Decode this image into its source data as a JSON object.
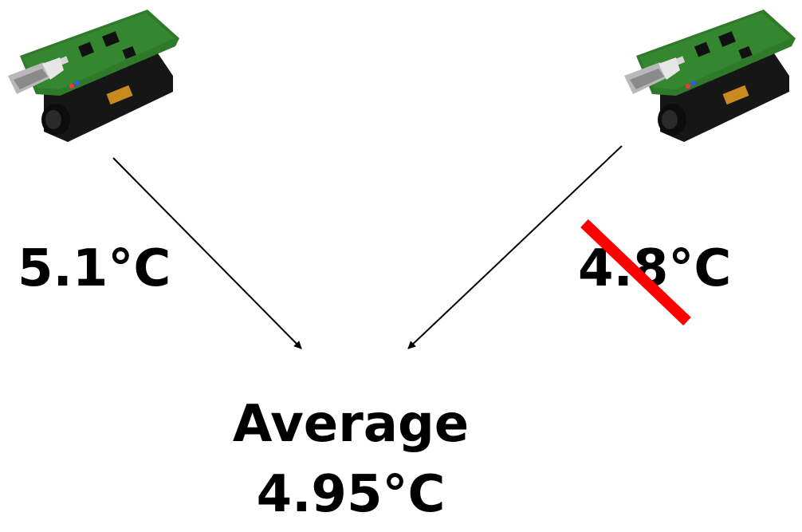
{
  "sensors": [
    {
      "name": "left-sensor"
    },
    {
      "name": "right-sensor"
    }
  ],
  "readings": {
    "left": "5.1°C",
    "right": "4.8°C"
  },
  "average": {
    "label": "Average",
    "value": "4.95°C"
  },
  "colors": {
    "board_green": "#2f7a2a",
    "battery_black": "#161616",
    "strike_red": "#ff0000"
  }
}
